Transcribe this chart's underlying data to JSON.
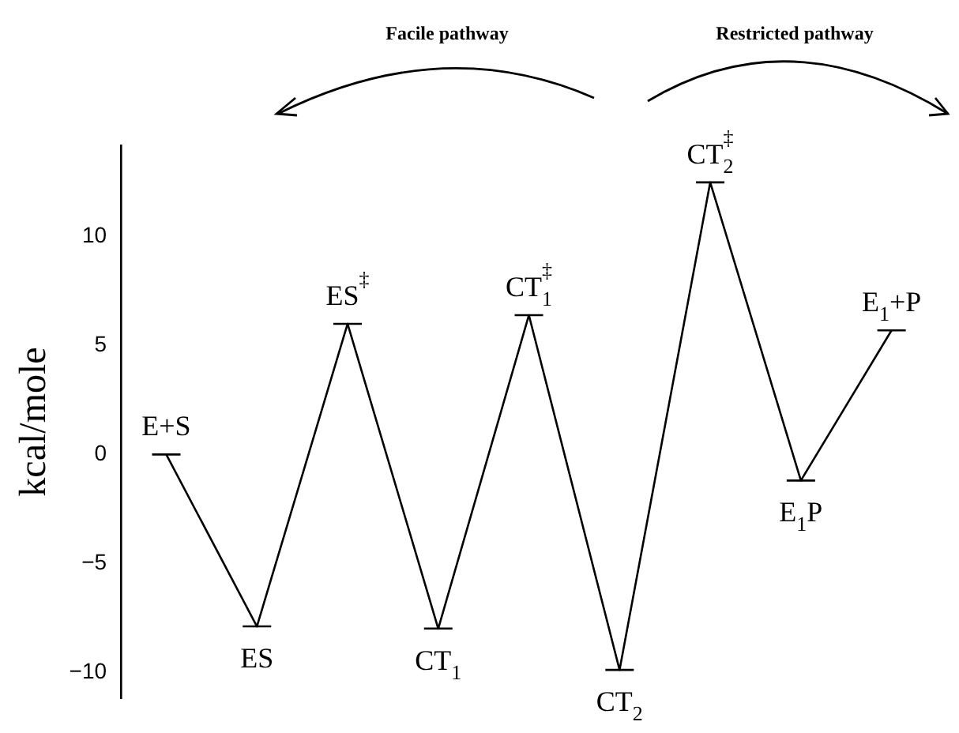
{
  "chart_data": {
    "type": "line",
    "ylabel": "kcal/mole",
    "categories": [
      null,
      null,
      null,
      null,
      null,
      null,
      null,
      null,
      null
    ],
    "series": [
      {
        "color": "#000000",
        "values": [
          0,
          -7.9,
          6.0,
          -8.0,
          6.4,
          -9.9,
          12.5,
          -1.2,
          5.7
        ]
      }
    ],
    "ylim": [
      -11.2,
      14.2
    ],
    "yticks": [
      -10,
      -5,
      0,
      5,
      10
    ],
    "tick_labels": "y",
    "grid": false,
    "legend": false,
    "annotations": [
      "Facile pathway",
      "Restricted pathway",
      {
        "text": "E+S",
        "y": 0
      },
      {
        "text": "ES",
        "y": -7.9
      },
      {
        "text": "ES$^{‡}$",
        "y": 6.0
      },
      {
        "text": "CT$_{1}$",
        "y": -8.0
      },
      {
        "text": "CT$_{1}$$^{‡}$",
        "y": 6.4
      },
      {
        "text": "CT$_{2}$",
        "y": -9.9
      },
      {
        "text": "CT$_{2}$$^{‡}$",
        "y": 12.5
      },
      {
        "text": "E$_{1}$P",
        "y": -1.2
      },
      {
        "text": "E$_{1}$+P",
        "y": 5.7
      }
    ]
  }
}
